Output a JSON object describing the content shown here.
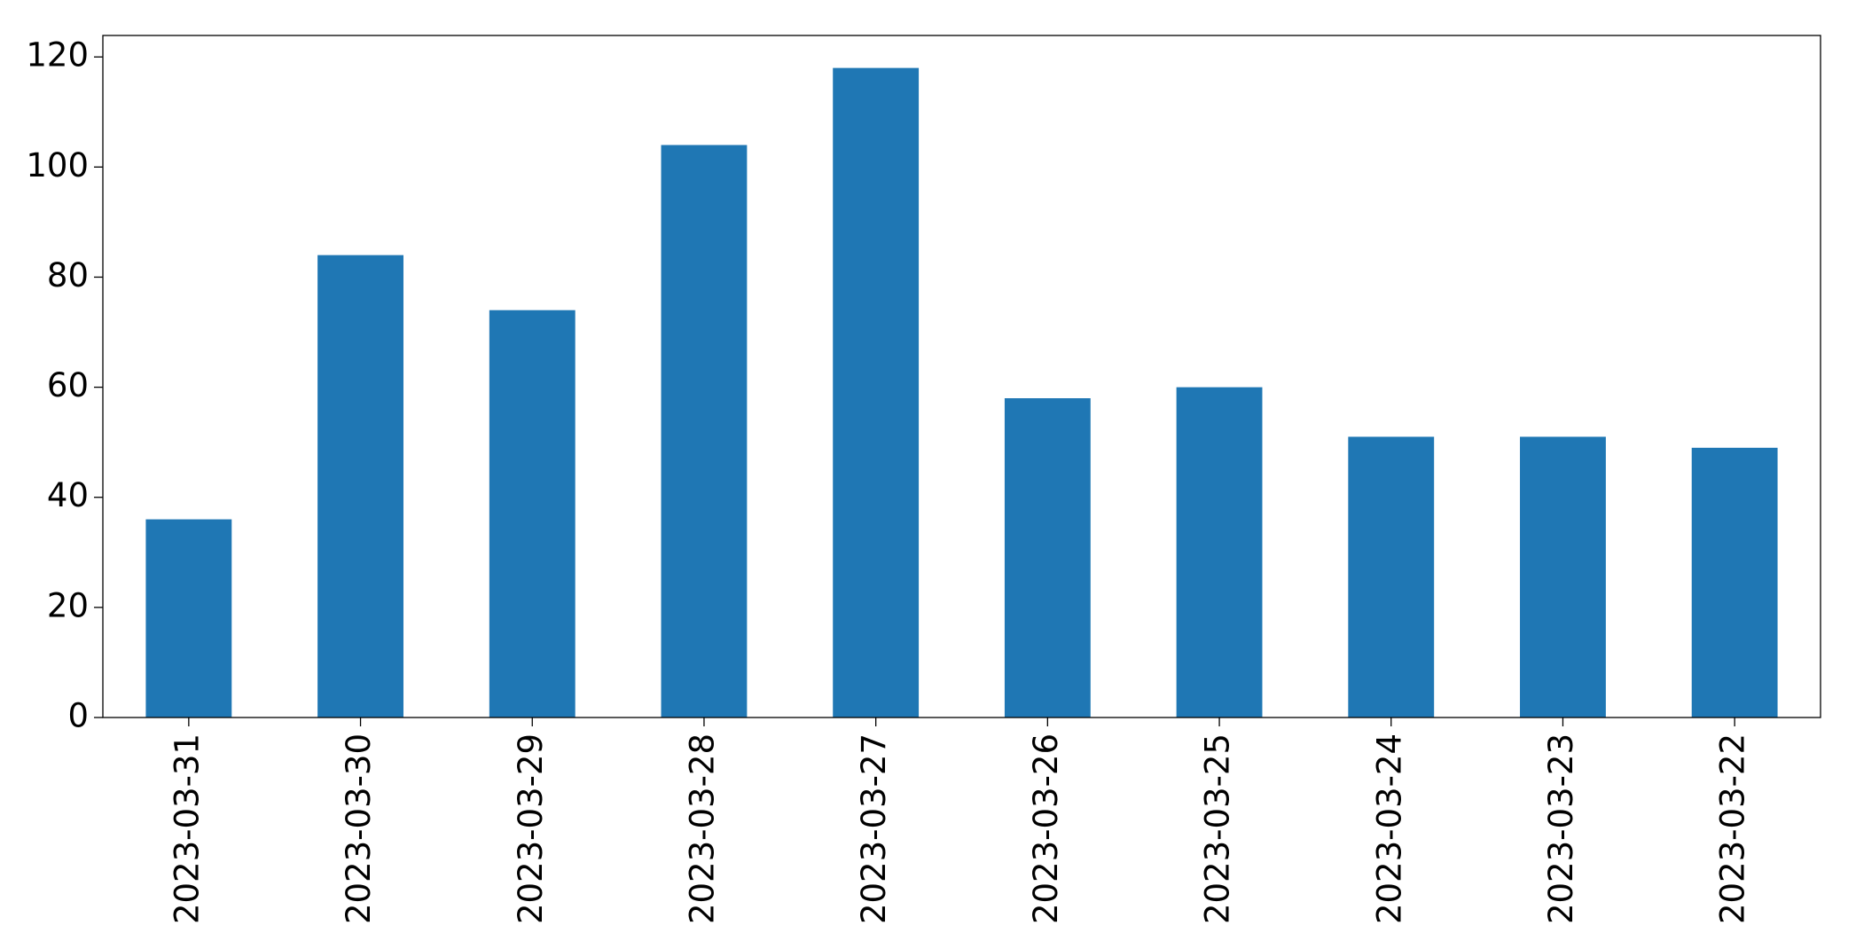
{
  "chart_data": {
    "type": "bar",
    "categories": [
      "2023-03-31",
      "2023-03-30",
      "2023-03-29",
      "2023-03-28",
      "2023-03-27",
      "2023-03-26",
      "2023-03-25",
      "2023-03-24",
      "2023-03-23",
      "2023-03-22"
    ],
    "values": [
      36,
      84,
      74,
      104,
      118,
      58,
      60,
      51,
      51,
      49
    ],
    "color": "#1f77b4",
    "ylim": [
      0,
      123.9
    ],
    "yticks": [
      0,
      20,
      40,
      60,
      80,
      100,
      120
    ],
    "grid": false
  }
}
